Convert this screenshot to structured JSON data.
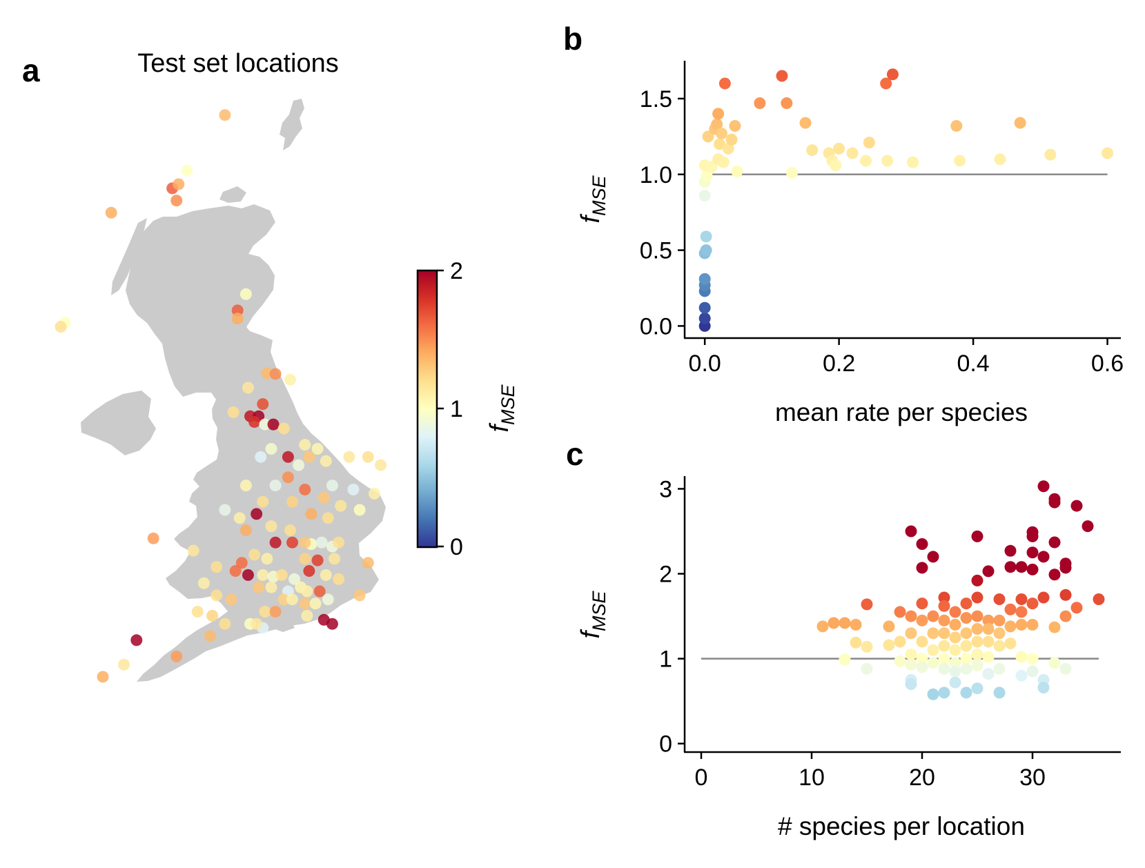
{
  "colors": {
    "low": "#313695",
    "mid": "#ffffbf",
    "high": "#a50026",
    "land": "#cbcbcb",
    "ref_line": "#888888"
  },
  "panels": {
    "a": {
      "letter": "a",
      "title": "Test set locations"
    },
    "b": {
      "letter": "b"
    },
    "c": {
      "letter": "c"
    }
  },
  "colorbar": {
    "label": "f",
    "label_sub": "MSE",
    "min": 0,
    "max": 2,
    "ticks": [
      "0",
      "1",
      "2"
    ]
  },
  "chart_data": [
    {
      "id": "map",
      "type": "scatter",
      "title": "Test set locations",
      "color_scale": "RdYlBu_r",
      "clim": [
        0,
        2
      ],
      "sites": [
        {
          "lon": -2.1,
          "lat": 57.15,
          "f": 1.35
        },
        {
          "lon": -3.0,
          "lat": 56.47,
          "f": 1.0
        },
        {
          "lon": -3.35,
          "lat": 56.25,
          "f": 1.65
        },
        {
          "lon": -3.2,
          "lat": 56.3,
          "f": 1.4
        },
        {
          "lon": -3.25,
          "lat": 56.1,
          "f": 1.5
        },
        {
          "lon": -4.8,
          "lat": 55.95,
          "f": 1.4
        },
        {
          "lon": -5.9,
          "lat": 54.6,
          "f": 1.0
        },
        {
          "lon": -6.0,
          "lat": 54.55,
          "f": 1.2
        },
        {
          "lon": -1.6,
          "lat": 54.95,
          "f": 1.0
        },
        {
          "lon": -1.8,
          "lat": 54.75,
          "f": 1.65
        },
        {
          "lon": -1.8,
          "lat": 54.65,
          "f": 1.4
        },
        {
          "lon": -1.1,
          "lat": 53.98,
          "f": 1.35
        },
        {
          "lon": -0.9,
          "lat": 53.97,
          "f": 1.5
        },
        {
          "lon": -0.55,
          "lat": 53.9,
          "f": 1.1
        },
        {
          "lon": -1.55,
          "lat": 53.8,
          "f": 1.15
        },
        {
          "lon": -1.2,
          "lat": 53.6,
          "f": 1.7
        },
        {
          "lon": -1.9,
          "lat": 53.5,
          "f": 1.2
        },
        {
          "lon": -1.5,
          "lat": 53.45,
          "f": 1.9
        },
        {
          "lon": -1.3,
          "lat": 53.45,
          "f": 2.0
        },
        {
          "lon": -1.4,
          "lat": 53.38,
          "f": 1.8
        },
        {
          "lon": -1.15,
          "lat": 53.35,
          "f": 0.9
        },
        {
          "lon": -0.95,
          "lat": 53.35,
          "f": 2.0
        },
        {
          "lon": -0.7,
          "lat": 53.3,
          "f": 1.2
        },
        {
          "lon": -1.0,
          "lat": 53.05,
          "f": 0.95
        },
        {
          "lon": -0.2,
          "lat": 53.1,
          "f": 1.1
        },
        {
          "lon": 0.1,
          "lat": 53.05,
          "f": 1.05
        },
        {
          "lon": -0.1,
          "lat": 52.95,
          "f": 1.3
        },
        {
          "lon": -0.35,
          "lat": 52.85,
          "f": 0.9
        },
        {
          "lon": -0.6,
          "lat": 52.95,
          "f": 1.9
        },
        {
          "lon": 0.3,
          "lat": 52.9,
          "f": 1.1
        },
        {
          "lon": 0.85,
          "lat": 52.95,
          "f": 1.15
        },
        {
          "lon": 1.3,
          "lat": 52.95,
          "f": 1.2
        },
        {
          "lon": -1.25,
          "lat": 52.95,
          "f": 0.8
        },
        {
          "lon": 1.6,
          "lat": 52.85,
          "f": 1.15
        },
        {
          "lon": -0.6,
          "lat": 52.7,
          "f": 1.5
        },
        {
          "lon": 0.45,
          "lat": 52.6,
          "f": 0.85
        },
        {
          "lon": 0.95,
          "lat": 52.55,
          "f": 0.8
        },
        {
          "lon": 1.45,
          "lat": 52.5,
          "f": 1.1
        },
        {
          "lon": -1.6,
          "lat": 52.6,
          "f": 1.05
        },
        {
          "lon": -0.9,
          "lat": 52.6,
          "f": 0.85
        },
        {
          "lon": -0.2,
          "lat": 52.55,
          "f": 1.6
        },
        {
          "lon": 0.25,
          "lat": 52.45,
          "f": 1.3
        },
        {
          "lon": -1.2,
          "lat": 52.4,
          "f": 1.2
        },
        {
          "lon": -0.5,
          "lat": 52.4,
          "f": 1.25
        },
        {
          "lon": 0.65,
          "lat": 52.35,
          "f": 1.15
        },
        {
          "lon": 1.1,
          "lat": 52.3,
          "f": 1.0
        },
        {
          "lon": -2.1,
          "lat": 52.3,
          "f": 0.85
        },
        {
          "lon": -1.35,
          "lat": 52.25,
          "f": 2.0
        },
        {
          "lon": -0.05,
          "lat": 52.25,
          "f": 1.4
        },
        {
          "lon": -1.75,
          "lat": 52.2,
          "f": 1.1
        },
        {
          "lon": 0.35,
          "lat": 52.2,
          "f": 1.2
        },
        {
          "lon": -1.0,
          "lat": 52.1,
          "f": 1.15
        },
        {
          "lon": -0.55,
          "lat": 52.05,
          "f": 1.2
        },
        {
          "lon": -1.6,
          "lat": 52.05,
          "f": 1.4
        },
        {
          "lon": -3.8,
          "lat": 51.95,
          "f": 1.45
        },
        {
          "lon": -0.9,
          "lat": 51.9,
          "f": 1.9
        },
        {
          "lon": -0.5,
          "lat": 51.9,
          "f": 1.75
        },
        {
          "lon": -0.05,
          "lat": 51.88,
          "f": 1.0
        },
        {
          "lon": 0.2,
          "lat": 51.9,
          "f": 0.85
        },
        {
          "lon": -0.2,
          "lat": 51.9,
          "f": 1.3
        },
        {
          "lon": 0.45,
          "lat": 51.85,
          "f": 0.9
        },
        {
          "lon": 0.6,
          "lat": 51.9,
          "f": 1.2
        },
        {
          "lon": -2.85,
          "lat": 51.8,
          "f": 1.15
        },
        {
          "lon": -1.4,
          "lat": 51.75,
          "f": 1.2
        },
        {
          "lon": -1.7,
          "lat": 51.65,
          "f": 1.6
        },
        {
          "lon": -1.1,
          "lat": 51.7,
          "f": 1.1
        },
        {
          "lon": -0.2,
          "lat": 51.7,
          "f": 1.25
        },
        {
          "lon": 0.1,
          "lat": 51.68,
          "f": 1.75
        },
        {
          "lon": 0.5,
          "lat": 51.7,
          "f": 1.15
        },
        {
          "lon": 1.3,
          "lat": 51.65,
          "f": 1.35
        },
        {
          "lon": -2.3,
          "lat": 51.6,
          "f": 1.2
        },
        {
          "lon": -1.85,
          "lat": 51.55,
          "f": 1.6
        },
        {
          "lon": -1.55,
          "lat": 51.5,
          "f": 2.0
        },
        {
          "lon": -1.2,
          "lat": 51.5,
          "f": 1.1
        },
        {
          "lon": -0.95,
          "lat": 51.48,
          "f": 0.95
        },
        {
          "lon": -0.75,
          "lat": 51.5,
          "f": 1.2
        },
        {
          "lon": -0.45,
          "lat": 51.45,
          "f": 0.9
        },
        {
          "lon": -0.1,
          "lat": 51.55,
          "f": 1.8
        },
        {
          "lon": 0.3,
          "lat": 51.5,
          "f": 1.1
        },
        {
          "lon": 0.6,
          "lat": 51.45,
          "f": 1.2
        },
        {
          "lon": -2.6,
          "lat": 51.4,
          "f": 1.1
        },
        {
          "lon": -1.3,
          "lat": 51.35,
          "f": 1.3
        },
        {
          "lon": -1.0,
          "lat": 51.35,
          "f": 1.1
        },
        {
          "lon": -0.6,
          "lat": 51.3,
          "f": 0.8
        },
        {
          "lon": -0.3,
          "lat": 51.35,
          "f": 1.05
        },
        {
          "lon": -0.15,
          "lat": 51.3,
          "f": 1.1
        },
        {
          "lon": 0.15,
          "lat": 51.3,
          "f": 1.65
        },
        {
          "lon": -2.3,
          "lat": 51.25,
          "f": 1.2
        },
        {
          "lon": -1.95,
          "lat": 51.2,
          "f": 1.3
        },
        {
          "lon": -0.7,
          "lat": 51.2,
          "f": 1.25
        },
        {
          "lon": -0.5,
          "lat": 51.2,
          "f": 1.1
        },
        {
          "lon": -0.2,
          "lat": 51.15,
          "f": 1.3
        },
        {
          "lon": 0.05,
          "lat": 51.15,
          "f": 1.05
        },
        {
          "lon": 0.35,
          "lat": 51.2,
          "f": 0.9
        },
        {
          "lon": 1.1,
          "lat": 51.25,
          "f": 1.3
        },
        {
          "lon": -2.75,
          "lat": 51.05,
          "f": 1.2
        },
        {
          "lon": -2.4,
          "lat": 51.0,
          "f": 1.25
        },
        {
          "lon": -1.15,
          "lat": 51.05,
          "f": 1.2
        },
        {
          "lon": -0.9,
          "lat": 51.05,
          "f": 1.45
        },
        {
          "lon": -0.15,
          "lat": 51.0,
          "f": 1.1
        },
        {
          "lon": 0.25,
          "lat": 50.95,
          "f": 2.0
        },
        {
          "lon": 0.45,
          "lat": 50.9,
          "f": 2.0
        },
        {
          "lon": -2.1,
          "lat": 50.9,
          "f": 1.2
        },
        {
          "lon": -1.5,
          "lat": 50.9,
          "f": 1.0
        },
        {
          "lon": -1.2,
          "lat": 50.85,
          "f": 0.8
        },
        {
          "lon": -1.35,
          "lat": 50.9,
          "f": 1.15
        },
        {
          "lon": -2.45,
          "lat": 50.75,
          "f": 1.35
        },
        {
          "lon": -4.2,
          "lat": 50.7,
          "f": 2.0
        },
        {
          "lon": -3.25,
          "lat": 50.5,
          "f": 1.45
        },
        {
          "lon": -4.5,
          "lat": 50.4,
          "f": 1.15
        },
        {
          "lon": -5.0,
          "lat": 50.25,
          "f": 1.4
        }
      ]
    },
    {
      "id": "b",
      "type": "scatter",
      "xlabel": "mean rate per species",
      "ylabel": "f_MSE",
      "xlim": [
        -0.03,
        0.62
      ],
      "ylim": [
        -0.08,
        1.75
      ],
      "xticks": [
        "0.0",
        "0.2",
        "0.4",
        "0.6"
      ],
      "yticks": [
        "0.0",
        "0.5",
        "1.0",
        "1.5"
      ],
      "reference_line": {
        "y": 1.0,
        "x_from": 0.0,
        "x_to": 0.6
      },
      "points": [
        [
          0.0,
          0.0
        ],
        [
          0.0,
          0.05
        ],
        [
          0.0,
          0.12
        ],
        [
          0.0,
          0.23
        ],
        [
          0.0,
          0.27
        ],
        [
          0.0,
          0.31
        ],
        [
          0.0,
          0.48
        ],
        [
          0.002,
          0.5
        ],
        [
          0.002,
          0.59
        ],
        [
          0.0,
          0.86
        ],
        [
          0.0,
          0.95
        ],
        [
          0.003,
          0.99
        ],
        [
          0.0,
          1.06
        ],
        [
          0.005,
          1.25
        ],
        [
          0.01,
          1.05
        ],
        [
          0.015,
          1.3
        ],
        [
          0.018,
          1.33
        ],
        [
          0.02,
          1.4
        ],
        [
          0.02,
          1.1
        ],
        [
          0.022,
          1.2
        ],
        [
          0.025,
          1.27
        ],
        [
          0.028,
          1.08
        ],
        [
          0.03,
          1.6
        ],
        [
          0.035,
          1.17
        ],
        [
          0.04,
          1.23
        ],
        [
          0.045,
          1.32
        ],
        [
          0.048,
          1.02
        ],
        [
          0.082,
          1.47
        ],
        [
          0.115,
          1.65
        ],
        [
          0.122,
          1.47
        ],
        [
          0.13,
          1.01
        ],
        [
          0.15,
          1.34
        ],
        [
          0.16,
          1.16
        ],
        [
          0.185,
          1.14
        ],
        [
          0.19,
          1.09
        ],
        [
          0.195,
          1.06
        ],
        [
          0.2,
          1.17
        ],
        [
          0.22,
          1.14
        ],
        [
          0.24,
          1.09
        ],
        [
          0.245,
          1.21
        ],
        [
          0.27,
          1.6
        ],
        [
          0.272,
          1.09
        ],
        [
          0.28,
          1.66
        ],
        [
          0.31,
          1.08
        ],
        [
          0.375,
          1.32
        ],
        [
          0.38,
          1.09
        ],
        [
          0.44,
          1.1
        ],
        [
          0.47,
          1.34
        ],
        [
          0.515,
          1.13
        ],
        [
          0.6,
          1.14
        ]
      ]
    },
    {
      "id": "c",
      "type": "scatter",
      "xlabel": "# species per location",
      "ylabel": "f_MSE",
      "xlim": [
        -1.5,
        38
      ],
      "ylim": [
        -0.1,
        3.15
      ],
      "xticks": [
        "0",
        "10",
        "20",
        "30"
      ],
      "yticks": [
        "0",
        "1",
        "2",
        "3"
      ],
      "reference_line": {
        "y": 1.0,
        "x_from": 0,
        "x_to": 36
      },
      "points": [
        [
          11,
          1.38
        ],
        [
          12,
          1.42
        ],
        [
          13,
          1.42
        ],
        [
          14,
          1.4
        ],
        [
          13,
          0.99
        ],
        [
          14,
          1.19
        ],
        [
          15,
          1.14
        ],
        [
          15,
          0.88
        ],
        [
          15,
          1.64
        ],
        [
          17,
          1.38
        ],
        [
          17,
          1.16
        ],
        [
          18,
          1.55
        ],
        [
          18,
          1.2
        ],
        [
          18,
          0.97
        ],
        [
          19,
          1.5
        ],
        [
          19,
          1.3
        ],
        [
          19,
          1.05
        ],
        [
          19,
          0.93
        ],
        [
          19,
          0.75
        ],
        [
          19,
          0.7
        ],
        [
          19,
          2.5
        ],
        [
          20,
          1.65
        ],
        [
          20,
          1.45
        ],
        [
          20,
          1.2
        ],
        [
          20,
          1.0
        ],
        [
          20,
          0.9
        ],
        [
          20,
          2.35
        ],
        [
          20,
          2.07
        ],
        [
          21,
          1.5
        ],
        [
          21,
          1.3
        ],
        [
          21,
          1.1
        ],
        [
          21,
          0.95
        ],
        [
          21,
          0.58
        ],
        [
          21,
          2.2
        ],
        [
          22,
          1.72
        ],
        [
          22,
          1.62
        ],
        [
          22,
          1.45
        ],
        [
          22,
          1.3
        ],
        [
          22,
          1.15
        ],
        [
          22,
          1.0
        ],
        [
          22,
          0.88
        ],
        [
          22,
          0.6
        ],
        [
          23,
          1.55
        ],
        [
          23,
          1.4
        ],
        [
          23,
          1.25
        ],
        [
          23,
          1.1
        ],
        [
          23,
          0.95
        ],
        [
          23,
          0.85
        ],
        [
          23,
          0.72
        ],
        [
          24,
          1.65
        ],
        [
          24,
          1.48
        ],
        [
          24,
          1.3
        ],
        [
          24,
          1.15
        ],
        [
          24,
          1.0
        ],
        [
          24,
          0.88
        ],
        [
          24,
          0.6
        ],
        [
          25,
          1.72
        ],
        [
          25,
          1.5
        ],
        [
          25,
          1.35
        ],
        [
          25,
          1.2
        ],
        [
          25,
          1.05
        ],
        [
          25,
          0.92
        ],
        [
          25,
          0.65
        ],
        [
          25,
          1.92
        ],
        [
          25,
          2.44
        ],
        [
          26,
          1.45
        ],
        [
          26,
          1.35
        ],
        [
          26,
          1.2
        ],
        [
          26,
          1.02
        ],
        [
          26,
          0.82
        ],
        [
          26,
          2.03
        ],
        [
          27,
          1.7
        ],
        [
          27,
          1.45
        ],
        [
          27,
          1.3
        ],
        [
          27,
          1.15
        ],
        [
          27,
          0.88
        ],
        [
          27,
          0.6
        ],
        [
          28,
          1.58
        ],
        [
          28,
          1.38
        ],
        [
          28,
          1.18
        ],
        [
          28,
          2.08
        ],
        [
          28,
          2.27
        ],
        [
          29,
          1.7
        ],
        [
          29,
          1.55
        ],
        [
          29,
          1.4
        ],
        [
          29,
          1.02
        ],
        [
          29,
          0.8
        ],
        [
          29,
          2.08
        ],
        [
          30,
          1.65
        ],
        [
          30,
          1.4
        ],
        [
          30,
          1.0
        ],
        [
          30,
          0.85
        ],
        [
          30,
          2.05
        ],
        [
          30,
          2.25
        ],
        [
          30,
          2.44
        ],
        [
          30,
          2.49
        ],
        [
          31,
          1.72
        ],
        [
          31,
          0.75
        ],
        [
          31,
          0.66
        ],
        [
          31,
          2.2
        ],
        [
          31,
          3.03
        ],
        [
          32,
          1.37
        ],
        [
          32,
          0.95
        ],
        [
          32,
          1.99
        ],
        [
          32,
          2.37
        ],
        [
          32,
          2.84
        ],
        [
          32,
          2.88
        ],
        [
          33,
          1.75
        ],
        [
          33,
          1.5
        ],
        [
          33,
          0.88
        ],
        [
          33,
          2.07
        ],
        [
          33,
          2.12
        ],
        [
          34,
          1.6
        ],
        [
          34,
          2.8
        ],
        [
          35,
          2.56
        ],
        [
          36,
          1.7
        ]
      ]
    }
  ]
}
